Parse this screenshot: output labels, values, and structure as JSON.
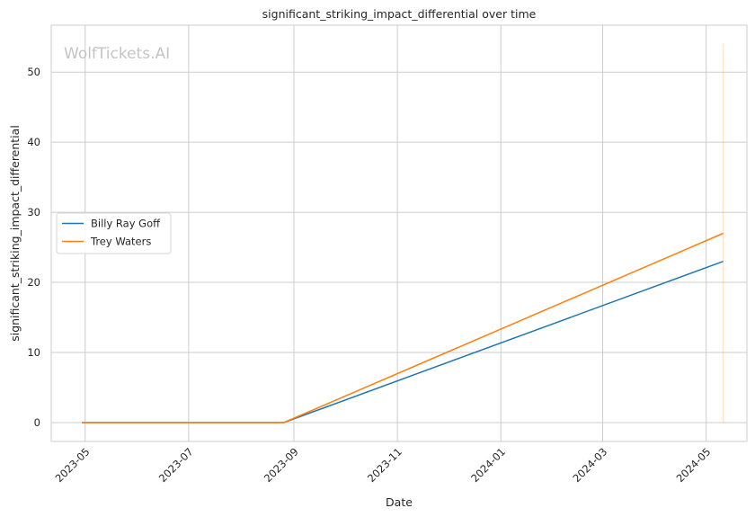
{
  "chart_data": {
    "type": "line",
    "title": "significant_striking_impact_differential over time",
    "xlabel": "Date",
    "ylabel": "significant_striking_impact_differential",
    "watermark": "WolfTickets.AI",
    "x_ticks": [
      "2023-05",
      "2023-07",
      "2023-09",
      "2023-11",
      "2024-01",
      "2024-03",
      "2024-05"
    ],
    "y_ticks": [
      0,
      10,
      20,
      30,
      40,
      50
    ],
    "xlim": [
      "2023-04-11",
      "2024-05-25"
    ],
    "ylim": [
      -2.7,
      56.7
    ],
    "grid": true,
    "legend_position": "center-left",
    "series": [
      {
        "name": "Billy Ray Goff",
        "color": "#1f77b4",
        "x": [
          "2023-04-29",
          "2023-08-26",
          "2024-05-11"
        ],
        "y": [
          0,
          0,
          23
        ]
      },
      {
        "name": "Trey Waters",
        "color": "#ff7f0e",
        "x": [
          "2023-04-29",
          "2023-08-26",
          "2024-05-11"
        ],
        "y": [
          0,
          0,
          27
        ]
      }
    ],
    "annotations": [
      {
        "type": "vline",
        "x": "2024-05-11",
        "y_from": 0,
        "y_to": 54,
        "color": "#ff7f0e"
      }
    ]
  }
}
